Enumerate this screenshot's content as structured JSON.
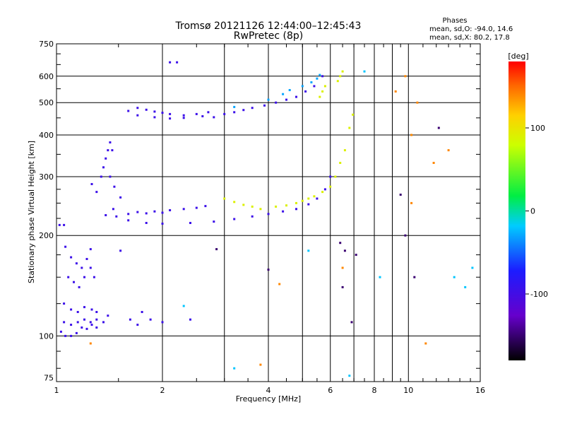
{
  "chart_data": {
    "type": "scatter",
    "title": "Tromsø 20121126 12:44:00–12:45:43",
    "subtitle": "RwPretec (8p)",
    "phase_stats": {
      "heading": "Phases",
      "line1": "mean, sd,O: -94.0, 14.6",
      "line2": "mean, sd,X:  80.2, 17.8"
    },
    "xlabel": "Frequency [MHz]",
    "ylabel": "Stationary phase Virtual Height [km]",
    "x_scale": "log",
    "y_scale": "log",
    "xlim": [
      1,
      16
    ],
    "ylim": [
      73,
      750
    ],
    "x_ticks": [
      1,
      2,
      4,
      6,
      8,
      10,
      16
    ],
    "x_ticklabels": [
      "1",
      "2",
      "4",
      "6",
      "8",
      "10",
      "16"
    ],
    "x_gridlines": [
      1,
      2,
      3,
      4,
      5,
      6,
      7,
      8,
      9,
      10,
      16
    ],
    "y_ticks": [
      75,
      100,
      200,
      300,
      400,
      500,
      600,
      750
    ],
    "y_ticklabels": [
      "75",
      "100",
      "200",
      "300",
      "400",
      "500",
      "600",
      "750"
    ],
    "y_gridlines": [
      100,
      200,
      300,
      400,
      500,
      600
    ],
    "grid": true,
    "colorbar": {
      "label": "[deg]",
      "range": [
        -180,
        180
      ],
      "ticks": [
        100,
        0,
        -100
      ],
      "ticklabels": [
        "100",
        "0",
        "-100"
      ]
    },
    "series": [
      {
        "color_deg": -95,
        "points": [
          [
            1.06,
            185
          ],
          [
            1.1,
            172
          ],
          [
            1.14,
            165
          ],
          [
            1.18,
            160
          ],
          [
            1.22,
            170
          ],
          [
            1.25,
            182
          ],
          [
            1.08,
            150
          ],
          [
            1.12,
            145
          ],
          [
            1.16,
            140
          ],
          [
            1.2,
            150
          ],
          [
            1.25,
            160
          ],
          [
            1.28,
            150
          ],
          [
            1.05,
            125
          ],
          [
            1.1,
            120
          ],
          [
            1.15,
            118
          ],
          [
            1.2,
            122
          ],
          [
            1.26,
            120
          ],
          [
            1.3,
            118
          ],
          [
            1.05,
            110
          ],
          [
            1.1,
            108
          ],
          [
            1.15,
            110
          ],
          [
            1.2,
            112
          ],
          [
            1.25,
            110
          ],
          [
            1.3,
            112
          ],
          [
            1.03,
            103
          ],
          [
            1.06,
            100
          ],
          [
            1.1,
            100
          ],
          [
            1.14,
            102
          ],
          [
            1.18,
            106
          ],
          [
            1.22,
            105
          ],
          [
            1.26,
            108
          ],
          [
            1.3,
            106
          ],
          [
            1.02,
            215
          ],
          [
            1.05,
            215
          ],
          [
            1.26,
            285
          ],
          [
            1.3,
            270
          ],
          [
            1.34,
            300
          ],
          [
            1.38,
            340
          ],
          [
            1.4,
            360
          ],
          [
            1.42,
            380
          ],
          [
            1.44,
            360
          ],
          [
            1.36,
            320
          ],
          [
            1.42,
            300
          ],
          [
            1.46,
            280
          ],
          [
            1.52,
            260
          ],
          [
            1.45,
            240
          ],
          [
            1.38,
            230
          ],
          [
            1.6,
            232
          ],
          [
            1.7,
            235
          ],
          [
            1.8,
            233
          ],
          [
            1.9,
            236
          ],
          [
            2.0,
            234
          ],
          [
            2.1,
            238
          ],
          [
            2.3,
            240
          ],
          [
            2.5,
            242
          ],
          [
            2.65,
            245
          ],
          [
            1.48,
            228
          ],
          [
            1.6,
            222
          ],
          [
            1.8,
            218
          ],
          [
            2.0,
            217
          ],
          [
            2.4,
            218
          ],
          [
            2.8,
            220
          ],
          [
            3.2,
            224
          ],
          [
            3.6,
            228
          ],
          [
            4.0,
            232
          ],
          [
            4.4,
            236
          ],
          [
            4.8,
            240
          ],
          [
            5.2,
            248
          ],
          [
            5.5,
            258
          ],
          [
            5.8,
            275
          ],
          [
            6.0,
            300
          ],
          [
            1.6,
            472
          ],
          [
            1.7,
            482
          ],
          [
            1.8,
            476
          ],
          [
            1.9,
            470
          ],
          [
            2.0,
            466
          ],
          [
            2.1,
            462
          ],
          [
            2.3,
            458
          ],
          [
            2.5,
            462
          ],
          [
            2.7,
            468
          ],
          [
            1.7,
            458
          ],
          [
            1.9,
            452
          ],
          [
            2.1,
            448
          ],
          [
            2.3,
            450
          ],
          [
            2.6,
            455
          ],
          [
            2.8,
            452
          ],
          [
            3.0,
            462
          ],
          [
            3.2,
            468
          ],
          [
            3.4,
            475
          ],
          [
            3.6,
            482
          ],
          [
            3.9,
            490
          ],
          [
            4.2,
            500
          ],
          [
            4.5,
            510
          ],
          [
            4.8,
            520
          ],
          [
            5.1,
            540
          ],
          [
            5.4,
            560
          ],
          [
            5.7,
            600
          ],
          [
            2.2,
            660
          ],
          [
            2.1,
            660
          ],
          [
            1.52,
            180
          ],
          [
            1.62,
            112
          ],
          [
            1.7,
            108
          ],
          [
            1.75,
            118
          ],
          [
            1.85,
            112
          ],
          [
            2.0,
            110
          ],
          [
            2.4,
            112
          ],
          [
            1.36,
            110
          ],
          [
            1.4,
            115
          ]
        ]
      },
      {
        "color_deg": 90,
        "points": [
          [
            3.0,
            258
          ],
          [
            3.2,
            252
          ],
          [
            3.4,
            247
          ],
          [
            3.6,
            244
          ],
          [
            3.8,
            240
          ],
          [
            4.2,
            244
          ],
          [
            4.5,
            246
          ],
          [
            4.8,
            250
          ],
          [
            5.0,
            254
          ],
          [
            5.2,
            258
          ],
          [
            5.4,
            262
          ],
          [
            5.7,
            270
          ],
          [
            6.0,
            280
          ],
          [
            6.2,
            300
          ],
          [
            6.4,
            330
          ],
          [
            6.6,
            360
          ],
          [
            6.8,
            420
          ],
          [
            6.95,
            460
          ],
          [
            5.6,
            520
          ],
          [
            5.7,
            540
          ],
          [
            5.8,
            560
          ],
          [
            6.3,
            580
          ],
          [
            6.4,
            600
          ],
          [
            6.5,
            620
          ]
        ]
      },
      {
        "color_deg": -30,
        "points": [
          [
            3.2,
            485
          ],
          [
            4.0,
            510
          ],
          [
            4.4,
            530
          ],
          [
            4.6,
            545
          ],
          [
            5.0,
            560
          ],
          [
            5.3,
            575
          ],
          [
            5.5,
            590
          ],
          [
            5.6,
            605
          ]
        ]
      },
      {
        "color_deg": 140,
        "points": [
          [
            9.2,
            540
          ],
          [
            9.8,
            600
          ],
          [
            10.6,
            500
          ],
          [
            10.2,
            400
          ],
          [
            13.0,
            360
          ],
          [
            11.8,
            330
          ],
          [
            10.2,
            250
          ],
          [
            6.5,
            160
          ],
          [
            11.2,
            95
          ],
          [
            1.25,
            95
          ],
          [
            4.3,
            143
          ],
          [
            3.8,
            82
          ]
        ]
      },
      {
        "color_deg": -150,
        "points": [
          [
            6.4,
            190
          ],
          [
            6.6,
            180
          ],
          [
            7.1,
            175
          ],
          [
            9.5,
            265
          ],
          [
            9.8,
            200
          ],
          [
            10.4,
            150
          ],
          [
            12.2,
            420
          ],
          [
            2.85,
            182
          ],
          [
            4.0,
            158
          ],
          [
            6.9,
            110
          ],
          [
            6.5,
            140
          ]
        ]
      },
      {
        "color_deg": -20,
        "points": [
          [
            14.5,
            140
          ],
          [
            13.5,
            150
          ],
          [
            15.2,
            160
          ],
          [
            8.3,
            150
          ],
          [
            7.5,
            620
          ],
          [
            5.2,
            180
          ],
          [
            3.2,
            80
          ],
          [
            6.8,
            76
          ],
          [
            2.3,
            123
          ]
        ]
      }
    ]
  }
}
